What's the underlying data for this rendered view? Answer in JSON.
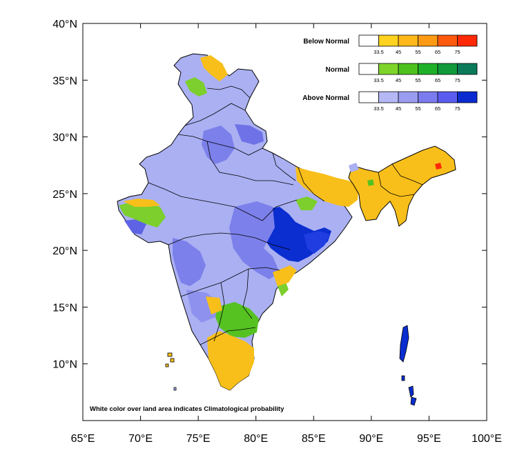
{
  "map": {
    "lon_range": [
      65,
      100
    ],
    "lat_range": [
      5,
      40
    ],
    "lon_ticks": [
      "65°E",
      "70°E",
      "75°E",
      "80°E",
      "85°E",
      "90°E",
      "95°E",
      "100°E"
    ],
    "lat_ticks": [
      "10°N",
      "15°N",
      "20°N",
      "25°N",
      "30°N",
      "35°N",
      "40°N"
    ],
    "lat_tick_values": [
      10,
      15,
      20,
      25,
      30,
      35,
      40
    ],
    "lon_tick_values": [
      65,
      70,
      75,
      80,
      85,
      90,
      95,
      100
    ],
    "note": "White color over land area indicates Climatological probability"
  },
  "legend": {
    "tick_labels": [
      "33.5",
      "45",
      "55",
      "65",
      "75"
    ],
    "categories": [
      {
        "title": "Below Normal",
        "colors": [
          "#ffffff",
          "#ffd21f",
          "#ffb81a",
          "#ff9a14",
          "#ff5a0d",
          "#ff2a05"
        ]
      },
      {
        "title": "Normal",
        "colors": [
          "#ffffff",
          "#7fd42a",
          "#4cc21f",
          "#1fb02a",
          "#119a3b",
          "#0a7a5a"
        ]
      },
      {
        "title": "Above Normal",
        "colors": [
          "#ffffff",
          "#b5b8f5",
          "#9a9cf0",
          "#7a7cee",
          "#5a5cf0",
          "#0b2bd0"
        ]
      }
    ]
  },
  "colors": {
    "above_normal_light": "#aab0f2",
    "above_normal_mid": "#7c80ea",
    "above_normal_dark": "#0a2ed0",
    "below_normal": "#f8bf1a",
    "normal": "#7ccf2c",
    "border": "#000000"
  }
}
